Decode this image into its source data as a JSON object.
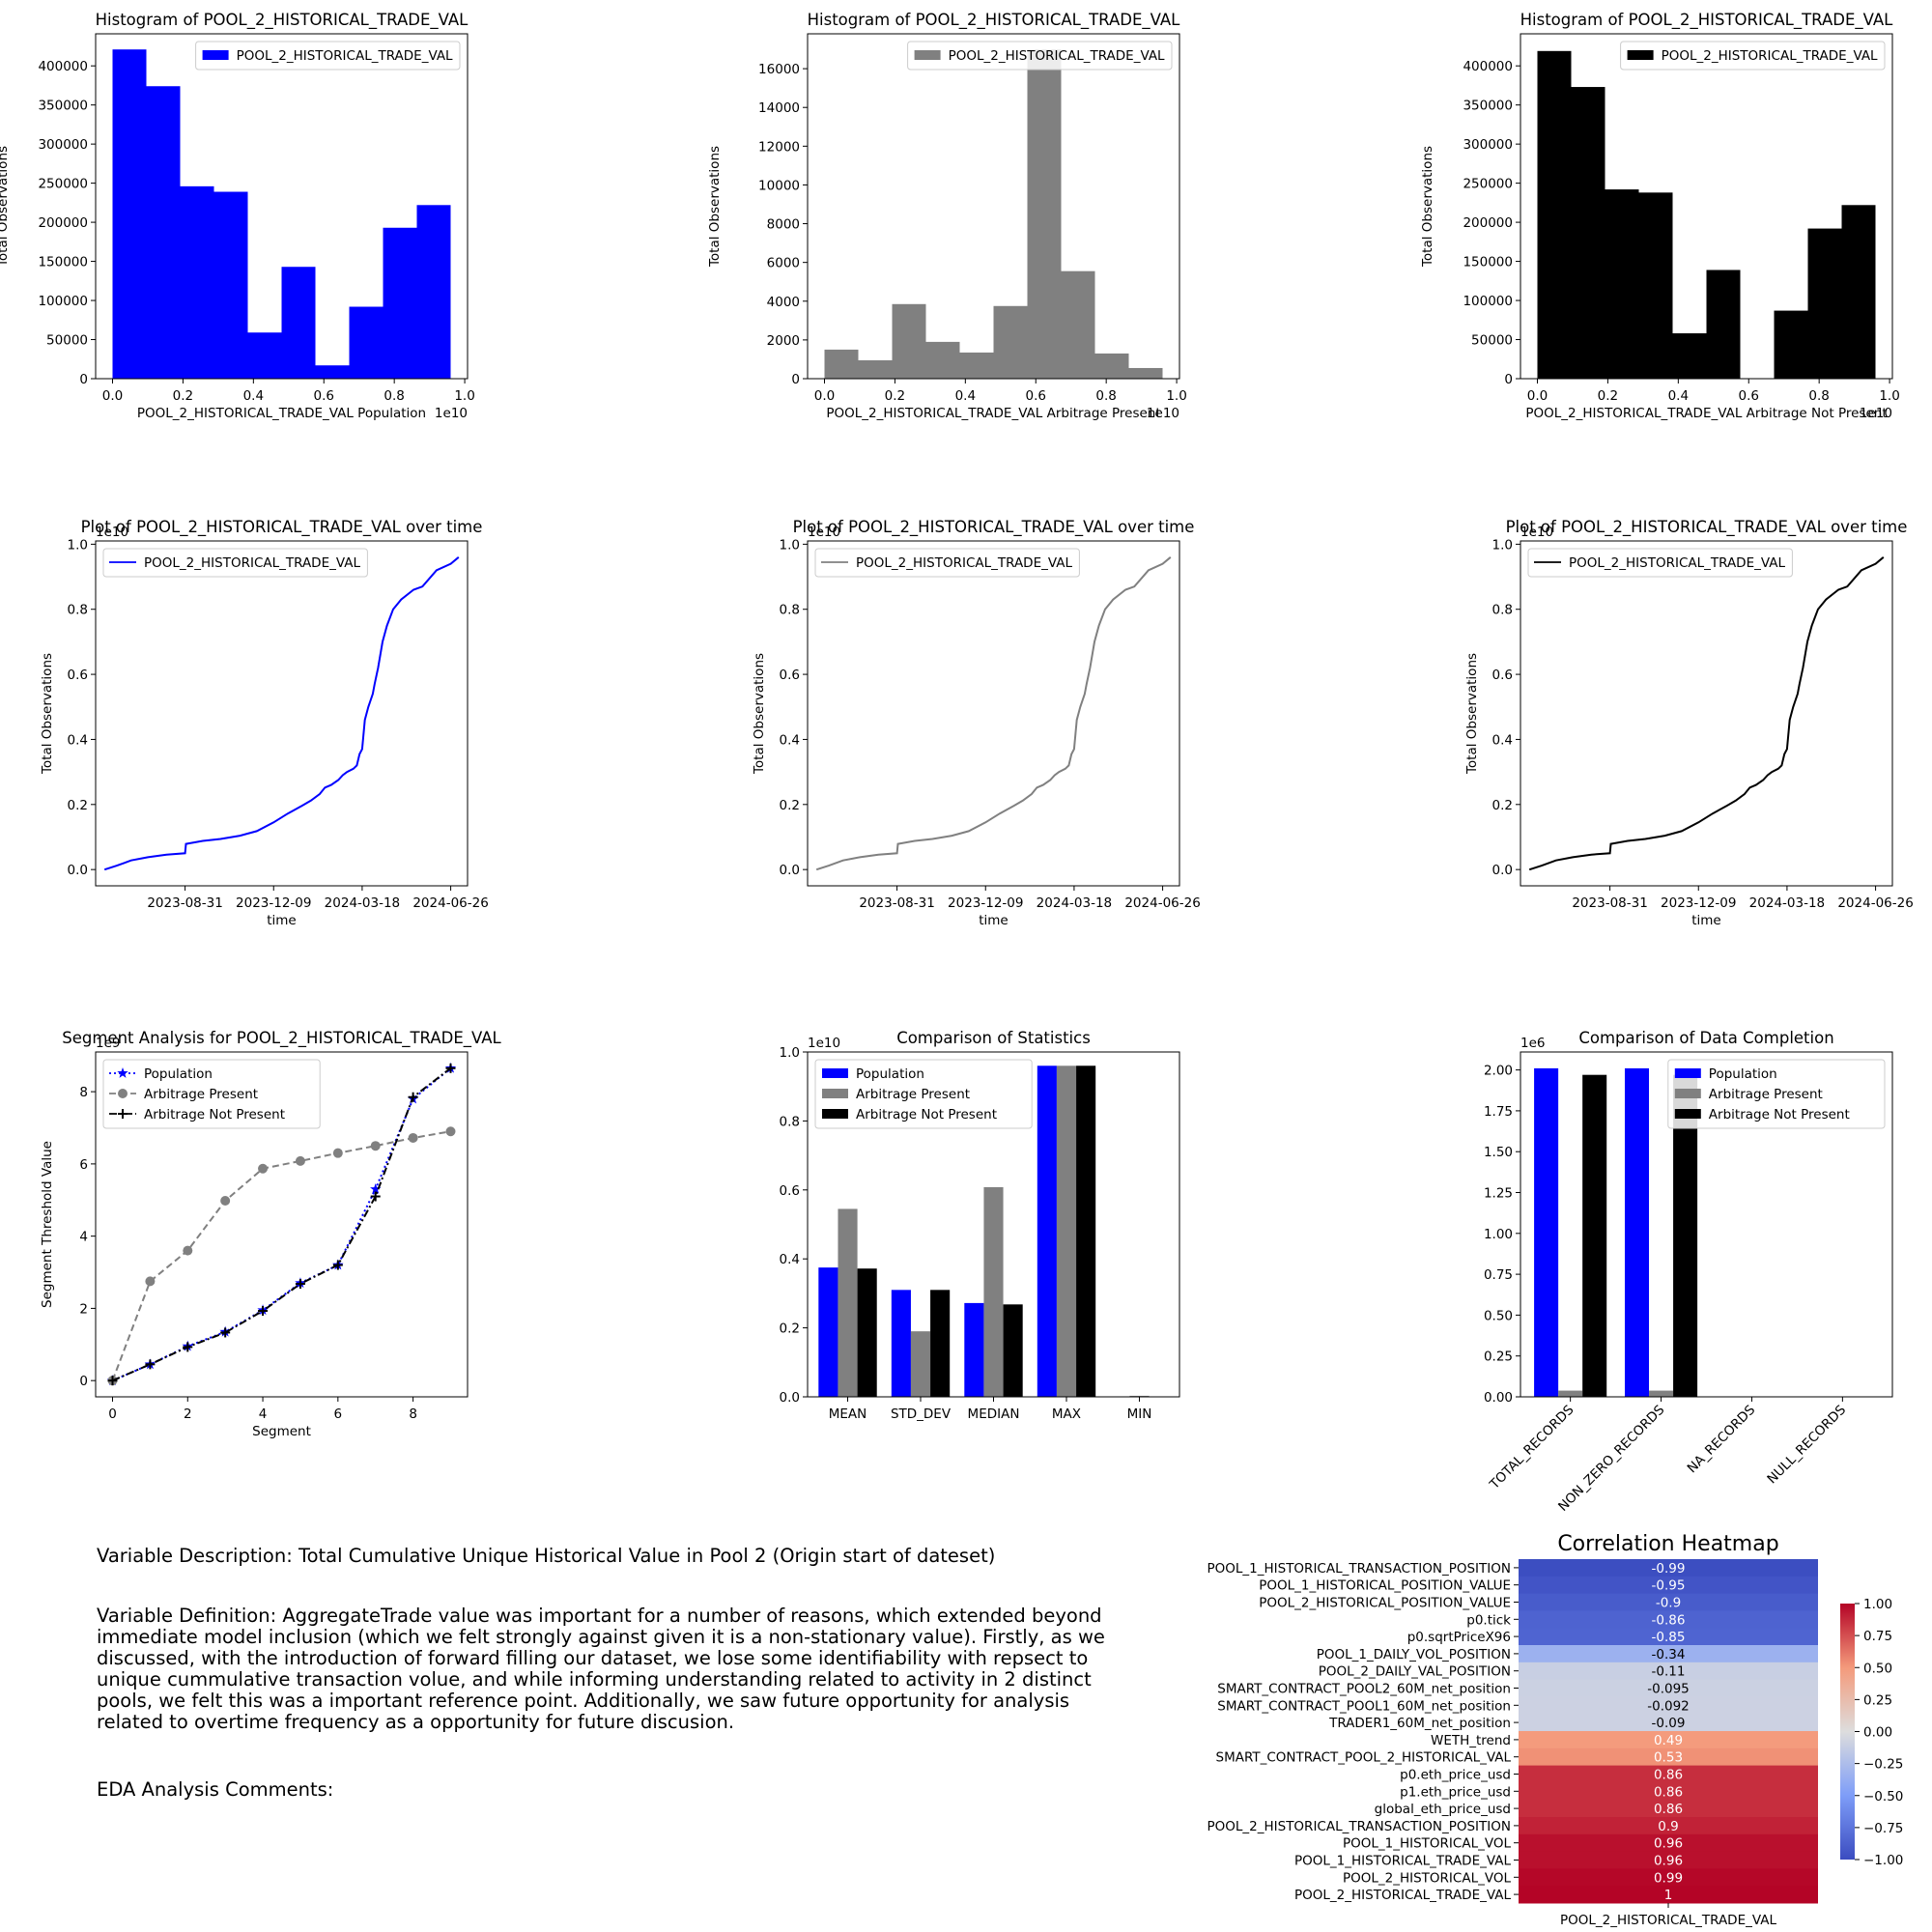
{
  "variable": "POOL_2_HISTORICAL_TRADE_VAL",
  "colors": {
    "population": "#0000ff",
    "arbitrage_present": "#808080",
    "arbitrage_not_present": "#000000"
  },
  "text": {
    "description": "Variable Description: Total Cumulative Unique Historical Value in Pool 2 (Origin start of dateset)",
    "definition": "Variable Definition: AggregateTrade value was important for a number of reasons, which extended beyond immediate model inclusion (which we felt strongly against given it is a non-stationary value). Firstly, as we discussed, with the introduction of forward filling our dataset, we lose some identifiability with repsect to unique cummulative transaction volue, and while informing understanding related to activity in 2 distinct pools, we felt this was a important reference point. Additionally,  we saw future opportunity for analysis related to overtime frequency as a opportunity for future discusion.",
    "eda_comments": "EDA Analysis Comments:"
  },
  "chart_data": [
    {
      "id": "hist_population",
      "type": "bar",
      "title": "Histogram of POOL_2_HISTORICAL_TRADE_VAL",
      "xlabel": "POOL_2_HISTORICAL_TRADE_VAL Population",
      "ylabel": "Total Observations",
      "x_offset_label": "1e10",
      "legend": [
        "POOL_2_HISTORICAL_TRADE_VAL"
      ],
      "legend_loc": "upper right",
      "color": "#0000ff",
      "xlim": [
        -0.048,
        1.008
      ],
      "ylim": [
        0,
        441000
      ],
      "bin_edges": [
        0,
        0.096,
        0.192,
        0.288,
        0.384,
        0.48,
        0.576,
        0.672,
        0.768,
        0.864,
        0.96
      ],
      "values": [
        421000,
        374000,
        246000,
        239000,
        59000,
        143000,
        17000,
        92000,
        193000,
        222000
      ],
      "xticks": [
        0,
        0.2,
        0.4,
        0.6,
        0.8,
        1.0
      ],
      "xtick_labels": [
        "0.0",
        "0.2",
        "0.4",
        "0.6",
        "0.8",
        "1.0"
      ],
      "yticks": [
        0,
        50000,
        100000,
        150000,
        200000,
        250000,
        300000,
        350000,
        400000
      ],
      "ytick_labels": [
        "0",
        "50000",
        "100000",
        "150000",
        "200000",
        "250000",
        "300000",
        "350000",
        "400000"
      ]
    },
    {
      "id": "hist_arb_present",
      "type": "bar",
      "title": "Histogram of POOL_2_HISTORICAL_TRADE_VAL",
      "xlabel": "POOL_2_HISTORICAL_TRADE_VAL Arbitrage Present",
      "ylabel": "Total Observations",
      "x_offset_label": "1e10",
      "legend": [
        "POOL_2_HISTORICAL_TRADE_VAL"
      ],
      "legend_loc": "upper right",
      "color": "#808080",
      "xlim": [
        -0.048,
        1.008
      ],
      "ylim": [
        0,
        17800
      ],
      "bin_edges": [
        0,
        0.096,
        0.192,
        0.288,
        0.384,
        0.48,
        0.576,
        0.672,
        0.768,
        0.864,
        0.96
      ],
      "values": [
        1500,
        950,
        3850,
        1900,
        1350,
        3750,
        17000,
        5550,
        1300,
        550
      ],
      "xticks": [
        0,
        0.2,
        0.4,
        0.6,
        0.8,
        1.0
      ],
      "xtick_labels": [
        "0.0",
        "0.2",
        "0.4",
        "0.6",
        "0.8",
        "1.0"
      ],
      "yticks": [
        0,
        2000,
        4000,
        6000,
        8000,
        10000,
        12000,
        14000,
        16000
      ],
      "ytick_labels": [
        "0",
        "2000",
        "4000",
        "6000",
        "8000",
        "10000",
        "12000",
        "14000",
        "16000"
      ]
    },
    {
      "id": "hist_arb_not_present",
      "type": "bar",
      "title": "Histogram of POOL_2_HISTORICAL_TRADE_VAL",
      "xlabel": "POOL_2_HISTORICAL_TRADE_VAL Arbitrage Not Present",
      "ylabel": "Total Observations",
      "x_offset_label": "1e10",
      "legend": [
        "POOL_2_HISTORICAL_TRADE_VAL"
      ],
      "legend_loc": "upper right",
      "color": "#000000",
      "xlim": [
        -0.048,
        1.008
      ],
      "ylim": [
        0,
        441000
      ],
      "bin_edges": [
        0,
        0.096,
        0.192,
        0.288,
        0.384,
        0.48,
        0.576,
        0.672,
        0.768,
        0.864,
        0.96
      ],
      "values": [
        419000,
        373000,
        242000,
        238000,
        58000,
        139000,
        0,
        87000,
        192000,
        222000
      ],
      "xticks": [
        0,
        0.2,
        0.4,
        0.6,
        0.8,
        1.0
      ],
      "xtick_labels": [
        "0.0",
        "0.2",
        "0.4",
        "0.6",
        "0.8",
        "1.0"
      ],
      "yticks": [
        0,
        50000,
        100000,
        150000,
        200000,
        250000,
        300000,
        350000,
        400000
      ],
      "ytick_labels": [
        "0",
        "50000",
        "100000",
        "150000",
        "200000",
        "250000",
        "300000",
        "350000",
        "400000"
      ]
    },
    {
      "id": "line_population",
      "type": "line",
      "title": "Plot of POOL_2_HISTORICAL_TRADE_VAL over time",
      "xlabel": "time",
      "ylabel": "Total Observations",
      "y_offset_label": "1e10",
      "legend": [
        "POOL_2_HISTORICAL_TRADE_VAL"
      ],
      "legend_loc": "upper left",
      "color": "#0000ff",
      "xlim": [
        "2023-05-22",
        "2024-07-15"
      ],
      "ylim": [
        -0.05,
        1.01
      ],
      "x": [
        "2023-06-01",
        "2023-06-15",
        "2023-07-01",
        "2023-07-20",
        "2023-08-10",
        "2023-08-31",
        "2023-09-01",
        "2023-09-20",
        "2023-10-10",
        "2023-11-01",
        "2023-11-20",
        "2023-12-09",
        "2023-12-25",
        "2024-01-10",
        "2024-01-20",
        "2024-01-30",
        "2024-02-05",
        "2024-02-12",
        "2024-02-20",
        "2024-02-25",
        "2024-03-01",
        "2024-03-08",
        "2024-03-12",
        "2024-03-15",
        "2024-03-18",
        "2024-03-21",
        "2024-03-25",
        "2024-03-30",
        "2024-04-01",
        "2024-04-05",
        "2024-04-10",
        "2024-04-15",
        "2024-04-22",
        "2024-05-01",
        "2024-05-15",
        "2024-05-25",
        "2024-06-10",
        "2024-06-26",
        "2024-07-05"
      ],
      "y": [
        0.0,
        0.012,
        0.028,
        0.038,
        0.046,
        0.05,
        0.079,
        0.088,
        0.094,
        0.104,
        0.118,
        0.145,
        0.172,
        0.196,
        0.212,
        0.232,
        0.252,
        0.26,
        0.275,
        0.29,
        0.3,
        0.31,
        0.32,
        0.355,
        0.37,
        0.46,
        0.5,
        0.54,
        0.57,
        0.62,
        0.7,
        0.75,
        0.8,
        0.83,
        0.86,
        0.87,
        0.92,
        0.94,
        0.96
      ]
    },
    {
      "id": "line_arb_present",
      "type": "line",
      "title": "Plot of POOL_2_HISTORICAL_TRADE_VAL over time",
      "xlabel": "time",
      "ylabel": "Total Observations",
      "y_offset_label": "1e10",
      "legend": [
        "POOL_2_HISTORICAL_TRADE_VAL"
      ],
      "legend_loc": "upper left",
      "color": "#808080",
      "xlim": [
        "2023-05-22",
        "2024-07-15"
      ],
      "ylim": [
        -0.05,
        1.01
      ],
      "x": [
        "2023-06-01",
        "2023-06-15",
        "2023-07-01",
        "2023-07-20",
        "2023-08-10",
        "2023-08-31",
        "2023-09-01",
        "2023-09-20",
        "2023-10-10",
        "2023-11-01",
        "2023-11-20",
        "2023-12-09",
        "2023-12-25",
        "2024-01-10",
        "2024-01-20",
        "2024-01-30",
        "2024-02-05",
        "2024-02-12",
        "2024-02-20",
        "2024-02-25",
        "2024-03-01",
        "2024-03-08",
        "2024-03-12",
        "2024-03-15",
        "2024-03-18",
        "2024-03-21",
        "2024-03-25",
        "2024-03-30",
        "2024-04-01",
        "2024-04-05",
        "2024-04-10",
        "2024-04-15",
        "2024-04-22",
        "2024-05-01",
        "2024-05-15",
        "2024-05-25",
        "2024-06-10",
        "2024-06-26",
        "2024-07-05"
      ],
      "y": [
        0.0,
        0.012,
        0.028,
        0.038,
        0.046,
        0.05,
        0.079,
        0.088,
        0.094,
        0.104,
        0.118,
        0.145,
        0.172,
        0.196,
        0.212,
        0.232,
        0.252,
        0.26,
        0.275,
        0.29,
        0.3,
        0.31,
        0.32,
        0.355,
        0.37,
        0.46,
        0.5,
        0.54,
        0.57,
        0.62,
        0.7,
        0.75,
        0.8,
        0.83,
        0.86,
        0.87,
        0.92,
        0.94,
        0.96
      ]
    },
    {
      "id": "line_arb_not_present",
      "type": "line",
      "title": "Plot of POOL_2_HISTORICAL_TRADE_VAL over time",
      "xlabel": "time",
      "ylabel": "Total Observations",
      "y_offset_label": "1e10",
      "legend": [
        "POOL_2_HISTORICAL_TRADE_VAL"
      ],
      "legend_loc": "upper left",
      "color": "#000000",
      "xlim": [
        "2023-05-22",
        "2024-07-15"
      ],
      "ylim": [
        -0.05,
        1.01
      ],
      "x": [
        "2023-06-01",
        "2023-06-15",
        "2023-07-01",
        "2023-07-20",
        "2023-08-10",
        "2023-08-31",
        "2023-09-01",
        "2023-09-20",
        "2023-10-10",
        "2023-11-01",
        "2023-11-20",
        "2023-12-09",
        "2023-12-25",
        "2024-01-10",
        "2024-01-20",
        "2024-01-30",
        "2024-02-05",
        "2024-02-12",
        "2024-02-20",
        "2024-02-25",
        "2024-03-01",
        "2024-03-08",
        "2024-03-12",
        "2024-03-15",
        "2024-03-18",
        "2024-03-21",
        "2024-03-25",
        "2024-03-30",
        "2024-04-01",
        "2024-04-05",
        "2024-04-10",
        "2024-04-15",
        "2024-04-22",
        "2024-05-01",
        "2024-05-15",
        "2024-05-25",
        "2024-06-10",
        "2024-06-26",
        "2024-07-05"
      ],
      "y": [
        0.0,
        0.012,
        0.028,
        0.038,
        0.046,
        0.05,
        0.079,
        0.088,
        0.094,
        0.104,
        0.118,
        0.145,
        0.172,
        0.196,
        0.212,
        0.232,
        0.252,
        0.26,
        0.275,
        0.29,
        0.3,
        0.31,
        0.32,
        0.355,
        0.37,
        0.46,
        0.5,
        0.54,
        0.57,
        0.62,
        0.7,
        0.75,
        0.8,
        0.83,
        0.86,
        0.87,
        0.92,
        0.94,
        0.96
      ]
    },
    {
      "id": "segment_analysis",
      "type": "line",
      "title": "Segment Analysis for POOL_2_HISTORICAL_TRADE_VAL",
      "xlabel": "Segment",
      "ylabel": "Segment Threshold Value",
      "y_offset_label": "1e9",
      "legend_loc": "upper left",
      "xlim": [
        -0.45,
        9.45
      ],
      "ylim": [
        -0.45,
        9.1
      ],
      "x": [
        0,
        1,
        2,
        3,
        4,
        5,
        6,
        7,
        8,
        9
      ],
      "series": [
        {
          "name": "Population",
          "color": "#0000ff",
          "style": "dotted",
          "marker": "star",
          "values": [
            0.0,
            0.45,
            0.95,
            1.35,
            1.95,
            2.7,
            3.2,
            5.3,
            7.8,
            8.65
          ]
        },
        {
          "name": "Arbitrage Present",
          "color": "#808080",
          "style": "dashed",
          "marker": "circle",
          "values": [
            0.0,
            2.75,
            3.6,
            4.98,
            5.87,
            6.08,
            6.3,
            6.5,
            6.72,
            6.9
          ]
        },
        {
          "name": "Arbitrage Not Present",
          "color": "#000000",
          "style": "dashdot",
          "marker": "plus",
          "values": [
            0.0,
            0.45,
            0.93,
            1.33,
            1.93,
            2.68,
            3.2,
            5.1,
            7.85,
            8.65
          ]
        }
      ],
      "xticks": [
        0,
        2,
        4,
        6,
        8
      ],
      "xtick_labels": [
        "0",
        "2",
        "4",
        "6",
        "8"
      ],
      "yticks": [
        0,
        2,
        4,
        6,
        8
      ],
      "ytick_labels": [
        "0",
        "2",
        "4",
        "6",
        "8"
      ]
    },
    {
      "id": "comparison_statistics",
      "type": "bar",
      "title": "Comparison of Statistics",
      "y_offset_label": "1e10",
      "legend_loc": "upper left",
      "ylim": [
        0,
        1.0
      ],
      "categories": [
        "MEAN",
        "STD_DEV",
        "MEDIAN",
        "MAX",
        "MIN"
      ],
      "series": [
        {
          "name": "Population",
          "color": "#0000ff",
          "values": [
            0.375,
            0.31,
            0.272,
            0.96,
            0.0
          ]
        },
        {
          "name": "Arbitrage Present",
          "color": "#808080",
          "values": [
            0.545,
            0.19,
            0.608,
            0.96,
            0.003
          ]
        },
        {
          "name": "Arbitrage Not Present",
          "color": "#000000",
          "values": [
            0.372,
            0.31,
            0.268,
            0.96,
            0.0
          ]
        }
      ],
      "yticks": [
        0,
        0.2,
        0.4,
        0.6,
        0.8,
        1.0
      ],
      "ytick_labels": [
        "0.0",
        "0.2",
        "0.4",
        "0.6",
        "0.8",
        "1.0"
      ]
    },
    {
      "id": "comparison_completion",
      "type": "bar",
      "title": "Comparison of Data Completion",
      "y_offset_label": "1e6",
      "legend_loc": "upper right",
      "ylim": [
        0,
        2.11
      ],
      "categories": [
        "TOTAL_RECORDS",
        "NON_ZERO_RECORDS",
        "NA_RECORDS",
        "NULL_RECORDS"
      ],
      "series": [
        {
          "name": "Population",
          "color": "#0000ff",
          "values": [
            2.01,
            2.01,
            0,
            0
          ]
        },
        {
          "name": "Arbitrage Present",
          "color": "#808080",
          "values": [
            0.038,
            0.038,
            0,
            0
          ]
        },
        {
          "name": "Arbitrage Not Present",
          "color": "#000000",
          "values": [
            1.97,
            1.97,
            0,
            0
          ]
        }
      ],
      "yticks": [
        0,
        0.25,
        0.5,
        0.75,
        1.0,
        1.25,
        1.5,
        1.75,
        2.0
      ],
      "ytick_labels": [
        "0.00",
        "0.25",
        "0.50",
        "0.75",
        "1.00",
        "1.25",
        "1.50",
        "1.75",
        "2.00"
      ]
    },
    {
      "id": "correlation_heatmap",
      "type": "heatmap",
      "title": "Correlation Heatmap",
      "column": "POOL_2_HISTORICAL_TRADE_VAL",
      "colormap": "coolwarm",
      "vmin": -1,
      "vmax": 1,
      "colorbar_ticks": [
        1.0,
        0.75,
        0.5,
        0.25,
        0.0,
        -0.25,
        -0.5,
        -0.75,
        -1.0
      ],
      "colorbar_tick_labels": [
        "1.00",
        "0.75",
        "0.50",
        "0.25",
        "0.00",
        "−0.25",
        "−0.50",
        "−0.75",
        "−1.00"
      ],
      "rows": [
        "POOL_1_HISTORICAL_TRANSACTION_POSITION",
        "POOL_1_HISTORICAL_POSITION_VALUE",
        "POOL_2_HISTORICAL_POSITION_VALUE",
        "p0.tick",
        "p0.sqrtPriceX96",
        "POOL_1_DAILY_VOL_POSITION",
        "POOL_2_DAILY_VAL_POSITION",
        "SMART_CONTRACT_POOL2_60M_net_position",
        "SMART_CONTRACT_POOL1_60M_net_position",
        "TRADER1_60M_net_position",
        "WETH_trend",
        "SMART_CONTRACT_POOL_2_HISTORICAL_VAL",
        "p0.eth_price_usd",
        "p1.eth_price_usd",
        "global_eth_price_usd",
        "POOL_2_HISTORICAL_TRANSACTION_POSITION",
        "POOL_1_HISTORICAL_VOL",
        "POOL_1_HISTORICAL_TRADE_VAL",
        "POOL_2_HISTORICAL_VOL",
        "POOL_2_HISTORICAL_TRADE_VAL"
      ],
      "values": [
        -0.99,
        -0.95,
        -0.9,
        -0.86,
        -0.85,
        -0.34,
        -0.11,
        -0.095,
        -0.092,
        -0.09,
        0.49,
        0.53,
        0.86,
        0.86,
        0.86,
        0.9,
        0.96,
        0.96,
        0.99,
        1
      ],
      "labels": [
        "-0.99",
        "-0.95",
        "-0.9",
        "-0.86",
        "-0.85",
        "-0.34",
        "-0.11",
        "-0.095",
        "-0.092",
        "-0.09",
        "0.49",
        "0.53",
        "0.86",
        "0.86",
        "0.86",
        "0.9",
        "0.96",
        "0.96",
        "0.99",
        "1"
      ]
    }
  ]
}
